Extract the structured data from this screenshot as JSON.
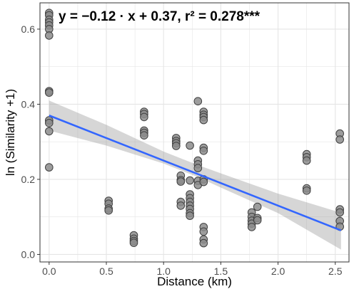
{
  "chart_data": {
    "type": "scatter",
    "annotation": "y = −0.12 · x + 0.37,   r² = 0.278***",
    "xlabel": "Distance (km)",
    "ylabel": "ln (Similarity +1)",
    "xlim": [
      -0.08,
      2.62
    ],
    "ylim": [
      -0.02,
      0.67
    ],
    "x_ticks": [
      0.0,
      0.5,
      1.0,
      1.5,
      2.0,
      2.5
    ],
    "x_tick_labels": [
      "0.0",
      "0.5",
      "1.0",
      "1.5",
      "2.0",
      "2.5"
    ],
    "y_ticks": [
      0.0,
      0.2,
      0.4,
      0.6
    ],
    "y_tick_labels": [
      "0.0",
      "0.2",
      "0.4",
      "0.6"
    ],
    "grid": true,
    "panel_background": "#ffffff",
    "grid_color": "#e5e5e5",
    "point_fill": "#8c8c8c",
    "point_stroke": "#404040",
    "fit_color": "#3366ff",
    "ci_color": "#999999",
    "fit": {
      "slope": -0.12,
      "intercept": 0.37,
      "x_range": [
        0.0,
        2.55
      ]
    },
    "ci_band": {
      "x": [
        0.0,
        0.5,
        1.0,
        1.3,
        1.5,
        2.0,
        2.55
      ],
      "upper": [
        0.41,
        0.345,
        0.274,
        0.238,
        0.216,
        0.162,
        0.111
      ],
      "lower": [
        0.33,
        0.29,
        0.242,
        0.206,
        0.178,
        0.11,
        0.013
      ]
    },
    "series": [
      {
        "x": [
          0,
          0,
          0,
          0,
          0,
          0,
          0,
          0,
          0,
          0,
          0,
          0,
          0,
          0.52,
          0.52,
          0.52,
          0.52,
          0.74,
          0.74,
          0.74,
          0.74,
          0.83,
          0.83,
          0.83,
          0.83,
          0.83,
          0.83,
          1.11,
          1.11,
          1.11,
          1.11,
          1.15,
          1.15,
          1.15,
          1.15,
          1.15,
          1.23,
          1.23,
          1.23,
          1.23,
          1.23,
          1.23,
          1.23,
          1.23,
          1.23,
          1.3,
          1.3,
          1.3,
          1.3,
          1.3,
          1.3,
          1.35,
          1.35,
          1.35,
          1.35,
          1.35,
          1.35,
          1.35,
          1.35,
          1.35,
          1.35,
          1.35,
          1.35,
          1.77,
          1.77,
          1.77,
          1.77,
          1.77,
          1.82,
          1.82,
          1.82,
          2.25,
          2.25,
          2.25,
          2.25,
          2.25,
          2.54,
          2.54,
          2.54,
          2.54,
          2.54,
          2.54
        ],
        "y": [
          0.643,
          0.637,
          0.625,
          0.618,
          0.61,
          0.6,
          0.583,
          0.435,
          0.431,
          0.357,
          0.35,
          0.328,
          0.232,
          0.143,
          0.135,
          0.122,
          0.117,
          0.051,
          0.042,
          0.036,
          0.031,
          0.38,
          0.374,
          0.366,
          0.33,
          0.324,
          0.317,
          0.31,
          0.302,
          0.296,
          0.289,
          0.21,
          0.198,
          0.194,
          0.14,
          0.13,
          0.29,
          0.197,
          0.16,
          0.15,
          0.14,
          0.13,
          0.121,
          0.11,
          0.103,
          0.408,
          0.25,
          0.24,
          0.23,
          0.196,
          0.185,
          0.38,
          0.372,
          0.366,
          0.358,
          0.284,
          0.276,
          0.2,
          0.193,
          0.073,
          0.061,
          0.04,
          0.03,
          0.112,
          0.1,
          0.09,
          0.082,
          0.073,
          0.127,
          0.097,
          0.091,
          0.267,
          0.259,
          0.25,
          0.176,
          0.17,
          0.322,
          0.306,
          0.12,
          0.112,
          0.089,
          0.074
        ]
      }
    ]
  }
}
